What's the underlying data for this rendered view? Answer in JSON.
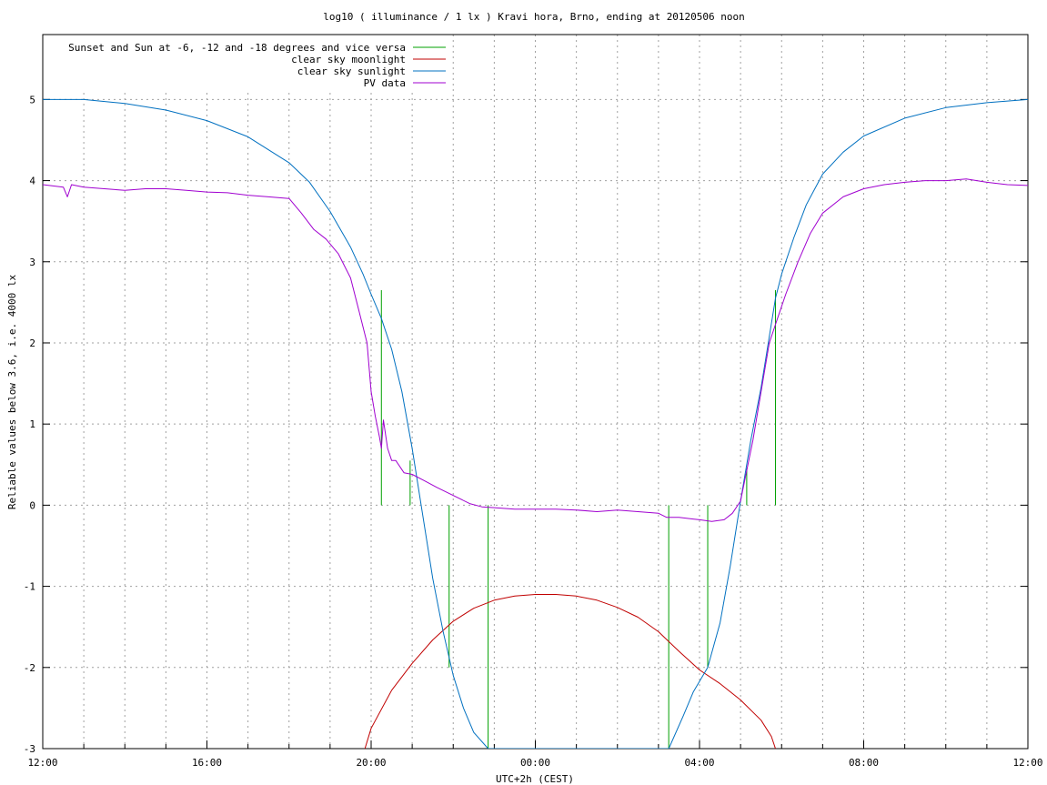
{
  "chart_data": {
    "type": "line",
    "title": "log10 ( illuminance / 1 lx ) Kravi hora, Brno, ending at 20120506 noon",
    "xlabel": "UTC+2h (CEST)",
    "ylabel": "Reliable values below 3.6, i.e. 4000 lx",
    "xlim_hours": [
      0,
      24
    ],
    "ylim": [
      -3,
      5.8
    ],
    "grid": true,
    "legend_position": "top-left",
    "x_ticks": [
      {
        "hour": 0,
        "label": "12:00"
      },
      {
        "hour": 4,
        "label": "16:00"
      },
      {
        "hour": 8,
        "label": "20:00"
      },
      {
        "hour": 12,
        "label": "00:00"
      },
      {
        "hour": 16,
        "label": "04:00"
      },
      {
        "hour": 20,
        "label": "08:00"
      },
      {
        "hour": 24,
        "label": "12:00"
      }
    ],
    "y_ticks": [
      {
        "value": 5,
        "label": "5"
      },
      {
        "value": 4,
        "label": "4"
      },
      {
        "value": 3,
        "label": "3"
      },
      {
        "value": 2,
        "label": "2"
      },
      {
        "value": 1,
        "label": "1"
      },
      {
        "value": 0,
        "label": "0"
      },
      {
        "value": -1,
        "label": "-1"
      },
      {
        "value": -2,
        "label": "-2"
      },
      {
        "value": -3,
        "label": "-3"
      }
    ],
    "series": [
      {
        "name": "Sunset and Sun at -6, -12 and -18 degrees and vice versa",
        "kind": "impulses",
        "color": "#00a000",
        "impulses": [
          {
            "hour": 8.25,
            "from": 0,
            "to": 2.65
          },
          {
            "hour": 8.95,
            "from": 0,
            "to": 0.55
          },
          {
            "hour": 9.9,
            "from": 0,
            "to": -2.0
          },
          {
            "hour": 10.85,
            "from": 0,
            "to": -3.0
          },
          {
            "hour": 15.25,
            "from": 0,
            "to": -3.0
          },
          {
            "hour": 16.2,
            "from": 0,
            "to": -2.0
          },
          {
            "hour": 17.15,
            "from": 0,
            "to": 0.45
          },
          {
            "hour": 17.85,
            "from": 0,
            "to": 2.65
          }
        ]
      },
      {
        "name": "clear sky moonlight",
        "color": "#c00000",
        "x": [
          7.85,
          8.0,
          8.5,
          9.0,
          9.5,
          10.0,
          10.5,
          11.0,
          11.5,
          12.0,
          12.5,
          13.0,
          13.5,
          14.0,
          14.5,
          15.0,
          15.5,
          16.0,
          16.5,
          17.0,
          17.5,
          17.75,
          17.85
        ],
        "y": [
          -3.0,
          -2.75,
          -2.28,
          -1.95,
          -1.66,
          -1.43,
          -1.27,
          -1.17,
          -1.12,
          -1.1,
          -1.1,
          -1.12,
          -1.17,
          -1.26,
          -1.38,
          -1.56,
          -1.8,
          -2.03,
          -2.2,
          -2.4,
          -2.65,
          -2.85,
          -3.0
        ]
      },
      {
        "name": "clear sky sunlight",
        "color": "#0070c0",
        "x": [
          0,
          1,
          2,
          3,
          4,
          5,
          6,
          6.5,
          7,
          7.5,
          7.8,
          8.0,
          8.25,
          8.5,
          8.75,
          9.0,
          9.25,
          9.5,
          9.75,
          10.0,
          10.25,
          10.5,
          10.85,
          15.25,
          15.6,
          15.85,
          16.2,
          16.5,
          16.75,
          17.0,
          17.25,
          17.5,
          17.85,
          18.0,
          18.3,
          18.6,
          19.0,
          19.5,
          20.0,
          21.0,
          22.0,
          23.0,
          24.0
        ],
        "y": [
          5.0,
          5.0,
          4.95,
          4.87,
          4.74,
          4.54,
          4.22,
          3.98,
          3.62,
          3.18,
          2.85,
          2.6,
          2.3,
          1.92,
          1.4,
          0.7,
          -0.1,
          -0.9,
          -1.55,
          -2.1,
          -2.5,
          -2.8,
          -3.0,
          -3.0,
          -2.6,
          -2.3,
          -2.0,
          -1.45,
          -0.75,
          0.05,
          0.8,
          1.45,
          2.55,
          2.85,
          3.3,
          3.7,
          4.08,
          4.35,
          4.55,
          4.77,
          4.9,
          4.96,
          5.0
        ]
      },
      {
        "name": "PV data",
        "color": "#a000d0",
        "x": [
          0.0,
          0.5,
          0.6,
          0.7,
          1.0,
          1.5,
          2.0,
          2.5,
          3.0,
          3.5,
          4.0,
          4.5,
          5.0,
          5.5,
          6.0,
          6.3,
          6.6,
          6.9,
          7.2,
          7.5,
          7.7,
          7.9,
          8.0,
          8.1,
          8.2,
          8.25,
          8.3,
          8.4,
          8.5,
          8.6,
          8.8,
          9.0,
          9.3,
          9.6,
          10.0,
          10.4,
          10.7,
          11.0,
          11.5,
          12.0,
          12.5,
          13.0,
          13.5,
          14.0,
          14.5,
          15.0,
          15.2,
          15.5,
          16.0,
          16.3,
          16.6,
          16.8,
          17.0,
          17.1,
          17.3,
          17.5,
          17.7,
          17.9,
          18.1,
          18.4,
          18.7,
          19.0,
          19.5,
          20.0,
          20.5,
          21.0,
          21.5,
          22.0,
          22.5,
          23.0,
          23.5,
          24.0
        ],
        "y": [
          3.95,
          3.92,
          3.8,
          3.95,
          3.92,
          3.9,
          3.88,
          3.9,
          3.9,
          3.88,
          3.86,
          3.85,
          3.82,
          3.8,
          3.78,
          3.6,
          3.4,
          3.28,
          3.1,
          2.8,
          2.4,
          2.0,
          1.4,
          1.1,
          0.85,
          0.7,
          1.05,
          0.7,
          0.55,
          0.55,
          0.4,
          0.38,
          0.3,
          0.22,
          0.12,
          0.02,
          -0.02,
          -0.03,
          -0.05,
          -0.05,
          -0.05,
          -0.06,
          -0.08,
          -0.06,
          -0.08,
          -0.1,
          -0.15,
          -0.15,
          -0.18,
          -0.2,
          -0.18,
          -0.1,
          0.05,
          0.3,
          0.8,
          1.4,
          2.0,
          2.3,
          2.6,
          3.0,
          3.35,
          3.6,
          3.8,
          3.9,
          3.95,
          3.98,
          4.0,
          4.0,
          4.02,
          3.98,
          3.95,
          3.94
        ]
      }
    ]
  }
}
